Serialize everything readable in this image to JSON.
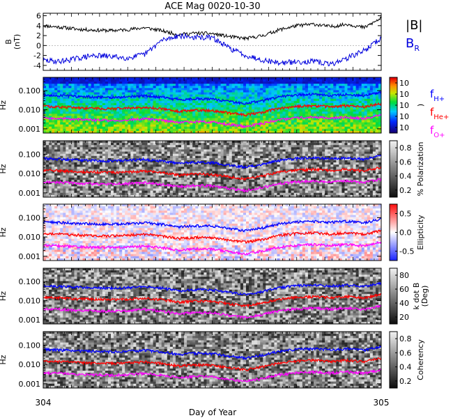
{
  "title": "ACE Mag 0020-10-30",
  "xlabel": "Day of Year",
  "x_ticks": [
    "304",
    "305"
  ],
  "colors": {
    "B_total": "#000000",
    "B_R": "#0000dd",
    "f_H": "#0000ff",
    "f_He": "#ff0000",
    "f_O": "#ff00ff"
  },
  "legends": {
    "B_total": "|B|",
    "B_R_main": "B",
    "B_R_sub": "R",
    "f_H_main": "f",
    "f_H_sub": "H+",
    "f_He_main": "f",
    "f_He_sub": "He+",
    "f_O_main": "f",
    "f_O_sub": "O+"
  },
  "chart_data": [
    {
      "type": "line",
      "name": "mag",
      "ylabel_line1": "B",
      "ylabel_line2": "(nT)",
      "ylim": [
        -5,
        6.5
      ],
      "y_ticks": [
        "6",
        "4",
        "2",
        "0",
        "-2",
        "-4"
      ],
      "x": [
        304.0,
        304.05,
        304.1,
        304.15,
        304.2,
        304.25,
        304.3,
        304.35,
        304.4,
        304.45,
        304.5,
        304.55,
        304.6,
        304.65,
        304.7,
        304.75,
        304.8,
        304.85,
        304.9,
        304.95,
        305.0
      ],
      "series": [
        {
          "key": "B_total",
          "values": [
            4.0,
            3.7,
            3.3,
            3.1,
            3.0,
            3.2,
            3.6,
            3.0,
            2.2,
            2.5,
            2.4,
            1.8,
            1.4,
            2.0,
            3.2,
            4.0,
            4.3,
            3.8,
            4.3,
            3.6,
            5.5
          ]
        },
        {
          "key": "B_R",
          "values": [
            -3.0,
            -3.2,
            -2.6,
            -2.0,
            -2.2,
            -2.5,
            -1.8,
            1.0,
            2.0,
            1.6,
            1.6,
            -0.5,
            -2.0,
            -2.9,
            -3.5,
            -3.3,
            -3.2,
            -3.8,
            -2.5,
            -1.0,
            1.5
          ]
        }
      ]
    },
    {
      "type": "heatmap",
      "name": "power",
      "ylabel": "Hz",
      "ylim": [
        0.0006,
        0.5
      ],
      "y_ticks": [
        "0.100",
        "0.010",
        "0.001"
      ],
      "colorbar": "rainbow",
      "colorbar_ticks": [
        "10",
        "10",
        "10",
        "10",
        "10"
      ],
      "colorbar_label": ")"
    },
    {
      "type": "heatmap",
      "name": "polarization",
      "ylabel": "Hz",
      "ylim": [
        0.0006,
        0.5
      ],
      "y_ticks": [
        "0.100",
        "0.010",
        "0.001"
      ],
      "colorbar": "gray",
      "colorbar_ticks": [
        "0.8",
        "0.6",
        "0.4",
        "0.2"
      ],
      "colorbar_label": "% Polarization"
    },
    {
      "type": "heatmap",
      "name": "ellipticity",
      "ylabel": "Hz",
      "ylim": [
        0.0006,
        0.5
      ],
      "y_ticks": [
        "0.100",
        "0.010",
        "0.001"
      ],
      "colorbar": "diverging",
      "colorbar_ticks": [
        "0.5",
        "0.0",
        "-0.5"
      ],
      "colorbar_label": "Ellipticity"
    },
    {
      "type": "heatmap",
      "name": "kdotb",
      "ylabel": "Hz",
      "ylim": [
        0.0006,
        0.5
      ],
      "y_ticks": [
        "0.100",
        "0.010",
        "0.001"
      ],
      "colorbar": "gray",
      "colorbar_ticks": [
        "80",
        "60",
        "40",
        "20"
      ],
      "colorbar_label_line1": "k dot B",
      "colorbar_label_line2": "(Deg)"
    },
    {
      "type": "heatmap",
      "name": "coherency",
      "ylabel": "Hz",
      "ylim": [
        0.0006,
        0.5
      ],
      "y_ticks": [
        "0.100",
        "0.010",
        "0.001"
      ],
      "colorbar": "gray",
      "colorbar_ticks": [
        "0.8",
        "0.6",
        "0.4",
        "0.2"
      ],
      "colorbar_label": "Coherency"
    }
  ],
  "gyro_lines": {
    "x": [
      304.0,
      304.05,
      304.1,
      304.15,
      304.2,
      304.25,
      304.3,
      304.35,
      304.4,
      304.45,
      304.5,
      304.55,
      304.6,
      304.65,
      304.7,
      304.75,
      304.8,
      304.85,
      304.9,
      304.95,
      305.0
    ],
    "f_H": [
      0.06,
      0.056,
      0.05,
      0.047,
      0.045,
      0.048,
      0.054,
      0.045,
      0.033,
      0.038,
      0.036,
      0.027,
      0.021,
      0.03,
      0.048,
      0.06,
      0.065,
      0.057,
      0.065,
      0.054,
      0.083
    ],
    "f_He": [
      0.015,
      0.014,
      0.0125,
      0.0118,
      0.0113,
      0.012,
      0.0135,
      0.0113,
      0.0083,
      0.0095,
      0.009,
      0.0068,
      0.0053,
      0.0075,
      0.012,
      0.015,
      0.0163,
      0.0143,
      0.0163,
      0.0135,
      0.021
    ],
    "f_O": [
      0.0037,
      0.0035,
      0.0031,
      0.0029,
      0.0028,
      0.003,
      0.0034,
      0.0028,
      0.0021,
      0.0024,
      0.0023,
      0.0017,
      0.0013,
      0.0019,
      0.003,
      0.0037,
      0.0041,
      0.0036,
      0.0041,
      0.0034,
      0.0052
    ]
  }
}
